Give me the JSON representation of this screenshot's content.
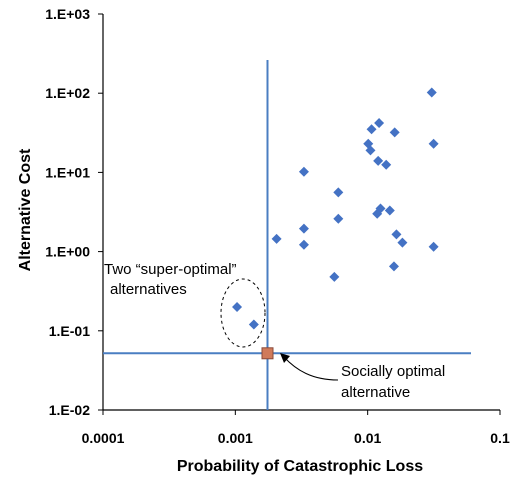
{
  "chart_data": {
    "type": "scatter",
    "xlabel": "Probability of Catastrophic Loss",
    "ylabel": "Alternative Cost",
    "x_scale": "log",
    "y_scale": "log",
    "xlim": [
      0.0001,
      0.1
    ],
    "ylim": [
      0.01,
      1000
    ],
    "x_ticks": [
      {
        "value": 0.0001,
        "label": "0.0001"
      },
      {
        "value": 0.001,
        "label": "0.001"
      },
      {
        "value": 0.01,
        "label": "0.01"
      },
      {
        "value": 0.1,
        "label": "0.1"
      }
    ],
    "y_ticks": [
      {
        "value": 0.01,
        "label": "1.E-02"
      },
      {
        "value": 0.1,
        "label": "1.E-01"
      },
      {
        "value": 1,
        "label": "1.E+00"
      },
      {
        "value": 10,
        "label": "1.E+01"
      },
      {
        "value": 100,
        "label": "1.E+02"
      },
      {
        "value": 1000,
        "label": "1.E+03"
      }
    ],
    "grid": false,
    "marker_color": "#4472C4",
    "optimal_marker_color": "#D07A5A",
    "line_color": "#4A7EC2",
    "points": [
      {
        "x": 0.00103,
        "y": 0.2
      },
      {
        "x": 0.00138,
        "y": 0.12
      },
      {
        "x": 0.00205,
        "y": 1.45
      },
      {
        "x": 0.0033,
        "y": 10.2
      },
      {
        "x": 0.0033,
        "y": 1.95
      },
      {
        "x": 0.0033,
        "y": 1.22
      },
      {
        "x": 0.0056,
        "y": 0.48
      },
      {
        "x": 0.006,
        "y": 5.6
      },
      {
        "x": 0.006,
        "y": 2.6
      },
      {
        "x": 0.0101,
        "y": 23.0
      },
      {
        "x": 0.0107,
        "y": 35.0
      },
      {
        "x": 0.0105,
        "y": 19.0
      },
      {
        "x": 0.0122,
        "y": 42.0
      },
      {
        "x": 0.012,
        "y": 14.0
      },
      {
        "x": 0.0118,
        "y": 3.0
      },
      {
        "x": 0.0125,
        "y": 3.5
      },
      {
        "x": 0.0138,
        "y": 12.5
      },
      {
        "x": 0.0147,
        "y": 3.3
      },
      {
        "x": 0.016,
        "y": 32.0
      },
      {
        "x": 0.0165,
        "y": 1.65
      },
      {
        "x": 0.0183,
        "y": 1.3
      },
      {
        "x": 0.0158,
        "y": 0.65
      },
      {
        "x": 0.0305,
        "y": 102.0
      },
      {
        "x": 0.0315,
        "y": 23.0
      },
      {
        "x": 0.0315,
        "y": 1.15
      }
    ],
    "optimal_point": {
      "x": 0.00175,
      "y": 0.052
    },
    "vertical_line_x": 0.00175,
    "horizontal_line_y": 0.052,
    "annotations": {
      "super_optimal_line1": "Two “super-optimal”",
      "super_optimal_line2": "alternatives",
      "optimal_line1": "Socially optimal",
      "optimal_line2": "alternative"
    }
  }
}
